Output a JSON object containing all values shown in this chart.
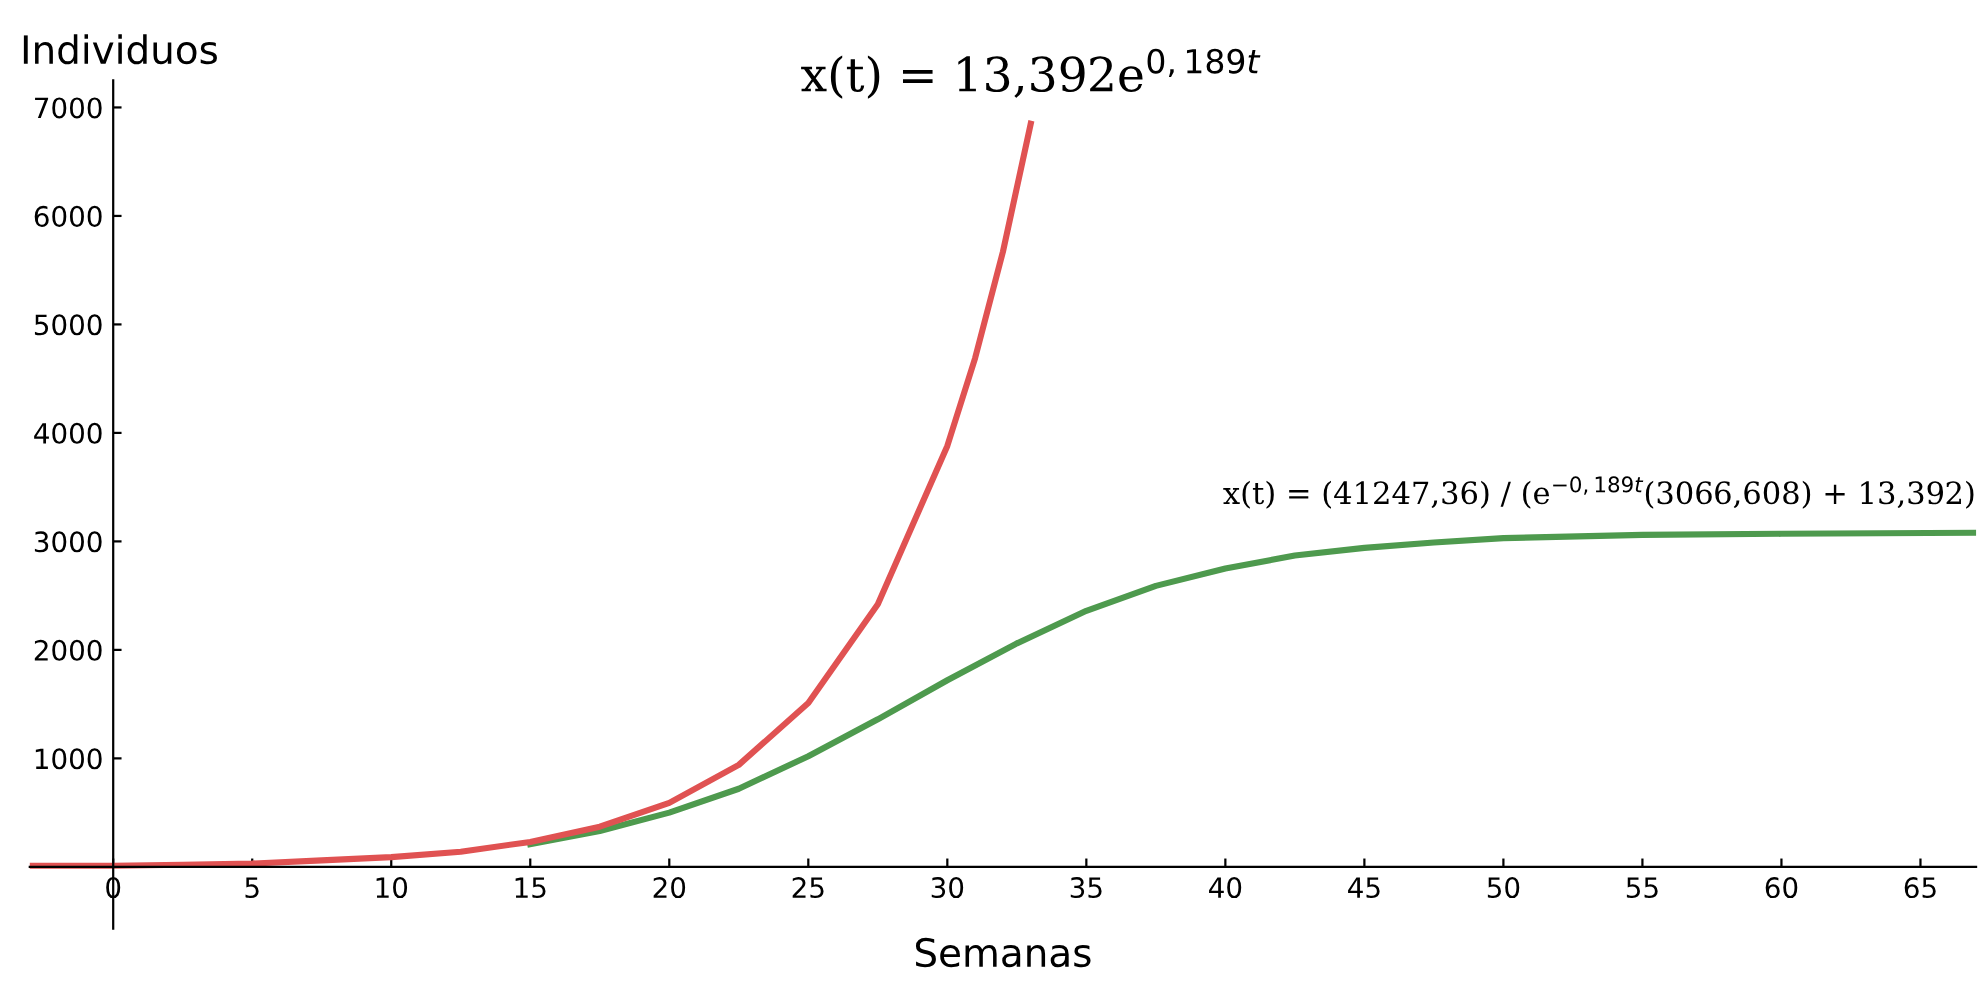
{
  "chart_data": {
    "type": "line",
    "xlabel": "Semanas",
    "ylabel": "Individuos",
    "xlim": [
      -3,
      67
    ],
    "ylim": [
      -570,
      7250
    ],
    "xticks": [
      0,
      5,
      10,
      15,
      20,
      25,
      30,
      35,
      40,
      45,
      50,
      55,
      60,
      65
    ],
    "yticks": [
      1000,
      2000,
      3000,
      4000,
      5000,
      6000,
      7000
    ],
    "grid": false,
    "legend": false,
    "marker": "none",
    "line_style": "solid",
    "series": [
      {
        "color": "#4e9a4e",
        "x": [
          15,
          17.5,
          20,
          22.5,
          25,
          27.5,
          30,
          32.5,
          35,
          37.5,
          40,
          42.5,
          45,
          47.5,
          50,
          55,
          60,
          67
        ],
        "values": [
          210,
          330,
          500,
          720,
          1020,
          1360,
          1720,
          2060,
          2360,
          2590,
          2750,
          2870,
          2940,
          2990,
          3030,
          3060,
          3070,
          3080
        ]
      },
      {
        "color": "#e05252",
        "x": [
          -3,
          0,
          2.5,
          5,
          7.5,
          10,
          12.5,
          15,
          17.5,
          20,
          22.5,
          25,
          27.5,
          30,
          31,
          32,
          33
        ],
        "values": [
          10,
          10,
          20,
          30,
          60,
          90,
          140,
          230,
          370,
          590,
          940,
          1510,
          2420,
          3880,
          4690,
          5670,
          6850
        ]
      }
    ],
    "annotations": [
      {
        "text": "x(t) = 13,392e$^{0,189t}$",
        "x": 33,
        "y": 6850
      },
      {
        "text": "x(t) = (41247,36) / (e$^{−0,189t}$(3066,608) + 13,392)",
        "x": 67,
        "y": 3080
      }
    ]
  }
}
